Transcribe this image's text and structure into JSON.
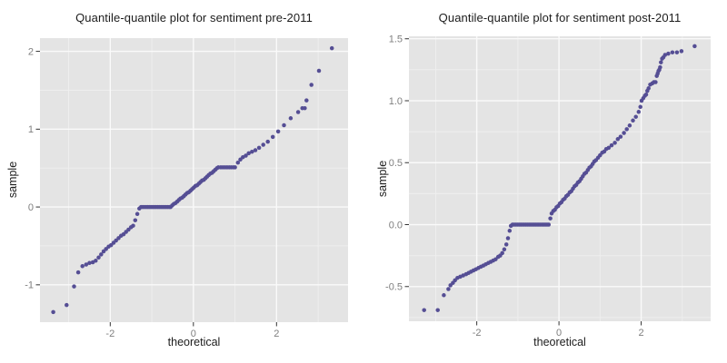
{
  "style": {
    "panel_background": "#e4e4e4",
    "grid_major_color": "#fafafa",
    "grid_minor_color": "#efefef",
    "point_color": "#554e94",
    "tick_mark_color": "#333333",
    "tick_label_color": "#7f7f7f",
    "text_color": "#1c1c1c"
  },
  "chart_data": [
    {
      "type": "scatter",
      "title": "Quantile-quantile plot for sentiment pre-2011",
      "xlabel": "theoretical",
      "ylabel": "sample",
      "xlim": [
        -3.69,
        3.72
      ],
      "ylim": [
        -1.48,
        2.17
      ],
      "grid": true,
      "legend": "none",
      "x_ticks": {
        "values": [
          -2,
          0,
          2
        ],
        "labels": [
          "-2",
          "0",
          "2"
        ],
        "minor": [
          -3,
          -1,
          1,
          3
        ]
      },
      "y_ticks": {
        "values": [
          -1,
          0,
          1,
          2
        ],
        "labels": [
          "-1",
          "0",
          "1",
          "2"
        ],
        "minor": [
          -0.5,
          0.5,
          1.5
        ]
      },
      "points": [
        [
          -3.37,
          -1.35
        ],
        [
          -3.05,
          -1.26
        ],
        [
          -2.87,
          -1.02
        ],
        [
          -2.77,
          -0.84
        ],
        [
          -2.67,
          -0.76
        ],
        [
          -2.58,
          -0.74
        ],
        [
          -2.5,
          -0.72
        ],
        [
          -2.42,
          -0.71
        ],
        [
          -2.35,
          -0.69
        ],
        [
          -2.28,
          -0.65
        ],
        [
          -2.22,
          -0.61
        ],
        [
          -2.16,
          -0.57
        ],
        [
          -2.1,
          -0.54
        ],
        [
          -2.04,
          -0.51
        ],
        [
          -1.98,
          -0.49
        ],
        [
          -1.92,
          -0.46
        ],
        [
          -1.86,
          -0.43
        ],
        [
          -1.8,
          -0.4
        ],
        [
          -1.74,
          -0.37
        ],
        [
          -1.68,
          -0.35
        ],
        [
          -1.62,
          -0.32
        ],
        [
          -1.56,
          -0.29
        ],
        [
          -1.5,
          -0.26
        ],
        [
          -1.45,
          -0.24
        ],
        [
          -1.4,
          -0.17
        ],
        [
          -1.35,
          -0.09
        ],
        [
          -1.3,
          -0.02
        ],
        [
          -1.26,
          0
        ],
        [
          -1.22,
          0
        ],
        [
          -1.18,
          0
        ],
        [
          -1.14,
          0
        ],
        [
          -1.1,
          0
        ],
        [
          -1.06,
          0
        ],
        [
          -1.02,
          0
        ],
        [
          -0.98,
          0
        ],
        [
          -0.94,
          0
        ],
        [
          -0.9,
          0
        ],
        [
          -0.86,
          0
        ],
        [
          -0.82,
          0
        ],
        [
          -0.78,
          0
        ],
        [
          -0.74,
          0
        ],
        [
          -0.7,
          0
        ],
        [
          -0.66,
          0
        ],
        [
          -0.62,
          0
        ],
        [
          -0.58,
          0
        ],
        [
          -0.55,
          0
        ],
        [
          -0.51,
          0.02
        ],
        [
          -0.47,
          0.04
        ],
        [
          -0.43,
          0.05
        ],
        [
          -0.39,
          0.07
        ],
        [
          -0.35,
          0.09
        ],
        [
          -0.31,
          0.11
        ],
        [
          -0.27,
          0.12
        ],
        [
          -0.23,
          0.14
        ],
        [
          -0.19,
          0.16
        ],
        [
          -0.15,
          0.18
        ],
        [
          -0.11,
          0.19
        ],
        [
          -0.07,
          0.21
        ],
        [
          -0.03,
          0.23
        ],
        [
          0.01,
          0.25
        ],
        [
          0.05,
          0.27
        ],
        [
          0.09,
          0.28
        ],
        [
          0.13,
          0.3
        ],
        [
          0.17,
          0.32
        ],
        [
          0.21,
          0.34
        ],
        [
          0.25,
          0.35
        ],
        [
          0.29,
          0.37
        ],
        [
          0.33,
          0.39
        ],
        [
          0.37,
          0.41
        ],
        [
          0.41,
          0.43
        ],
        [
          0.45,
          0.44
        ],
        [
          0.49,
          0.46
        ],
        [
          0.53,
          0.48
        ],
        [
          0.57,
          0.5
        ],
        [
          0.6,
          0.51
        ],
        [
          0.66,
          0.51
        ],
        [
          0.71,
          0.51
        ],
        [
          0.76,
          0.51
        ],
        [
          0.81,
          0.51
        ],
        [
          0.86,
          0.51
        ],
        [
          0.91,
          0.51
        ],
        [
          0.96,
          0.51
        ],
        [
          1,
          0.51
        ],
        [
          1.07,
          0.57
        ],
        [
          1.13,
          0.61
        ],
        [
          1.19,
          0.64
        ],
        [
          1.26,
          0.66
        ],
        [
          1.33,
          0.69
        ],
        [
          1.41,
          0.71
        ],
        [
          1.49,
          0.73
        ],
        [
          1.58,
          0.76
        ],
        [
          1.68,
          0.8
        ],
        [
          1.79,
          0.84
        ],
        [
          1.91,
          0.9
        ],
        [
          2.04,
          0.97
        ],
        [
          2.18,
          1.05
        ],
        [
          2.34,
          1.14
        ],
        [
          2.52,
          1.22
        ],
        [
          2.62,
          1.27
        ],
        [
          2.68,
          1.27
        ],
        [
          2.72,
          1.37
        ],
        [
          2.84,
          1.57
        ],
        [
          3.02,
          1.75
        ],
        [
          3.33,
          2.04
        ]
      ]
    },
    {
      "type": "scatter",
      "title": "Quantile-quantile plot for sentiment post-2011",
      "xlabel": "theoretical",
      "ylabel": "sample",
      "xlim": [
        -3.65,
        3.69
      ],
      "ylim": [
        -0.78,
        1.52
      ],
      "grid": true,
      "legend": "none",
      "x_ticks": {
        "values": [
          -2,
          0,
          2
        ],
        "labels": [
          "-2",
          "0",
          "2"
        ],
        "minor": [
          -3,
          -1,
          1,
          3
        ]
      },
      "y_ticks": {
        "values": [
          -0.5,
          0,
          0.5,
          1,
          1.5
        ],
        "labels": [
          "-0.5",
          "0.0",
          "0.5",
          "1.0",
          "1.5"
        ],
        "minor": [
          -0.75,
          -0.25,
          0.25,
          0.75,
          1.25
        ]
      },
      "points": [
        [
          -3.28,
          -0.69
        ],
        [
          -2.95,
          -0.69
        ],
        [
          -2.8,
          -0.57
        ],
        [
          -2.69,
          -0.52
        ],
        [
          -2.64,
          -0.49
        ],
        [
          -2.58,
          -0.47
        ],
        [
          -2.53,
          -0.45
        ],
        [
          -2.47,
          -0.43
        ],
        [
          -2.4,
          -0.42
        ],
        [
          -2.33,
          -0.41
        ],
        [
          -2.26,
          -0.4
        ],
        [
          -2.2,
          -0.39
        ],
        [
          -2.14,
          -0.38
        ],
        [
          -2.08,
          -0.37
        ],
        [
          -2.02,
          -0.36
        ],
        [
          -1.96,
          -0.35
        ],
        [
          -1.9,
          -0.34
        ],
        [
          -1.84,
          -0.33
        ],
        [
          -1.78,
          -0.32
        ],
        [
          -1.72,
          -0.31
        ],
        [
          -1.66,
          -0.3
        ],
        [
          -1.6,
          -0.29
        ],
        [
          -1.54,
          -0.28
        ],
        [
          -1.48,
          -0.26
        ],
        [
          -1.43,
          -0.25
        ],
        [
          -1.38,
          -0.23
        ],
        [
          -1.33,
          -0.2
        ],
        [
          -1.28,
          -0.16
        ],
        [
          -1.24,
          -0.11
        ],
        [
          -1.2,
          -0.05
        ],
        [
          -1.17,
          -0.01
        ],
        [
          -1.13,
          0
        ],
        [
          -1.09,
          0
        ],
        [
          -1.05,
          0
        ],
        [
          -1.01,
          0
        ],
        [
          -0.97,
          0
        ],
        [
          -0.93,
          0
        ],
        [
          -0.89,
          0
        ],
        [
          -0.85,
          0
        ],
        [
          -0.81,
          0
        ],
        [
          -0.77,
          0
        ],
        [
          -0.73,
          0
        ],
        [
          -0.69,
          0
        ],
        [
          -0.65,
          0
        ],
        [
          -0.61,
          0
        ],
        [
          -0.57,
          0
        ],
        [
          -0.53,
          0
        ],
        [
          -0.49,
          0
        ],
        [
          -0.45,
          0
        ],
        [
          -0.41,
          0
        ],
        [
          -0.37,
          0
        ],
        [
          -0.33,
          0
        ],
        [
          -0.29,
          0
        ],
        [
          -0.25,
          0
        ],
        [
          -0.21,
          0.05
        ],
        [
          -0.18,
          0.09
        ],
        [
          -0.14,
          0.11
        ],
        [
          -0.1,
          0.12
        ],
        [
          -0.06,
          0.14
        ],
        [
          -0.02,
          0.15
        ],
        [
          0.02,
          0.17
        ],
        [
          0.06,
          0.18
        ],
        [
          0.1,
          0.2
        ],
        [
          0.14,
          0.21
        ],
        [
          0.18,
          0.23
        ],
        [
          0.22,
          0.24
        ],
        [
          0.26,
          0.26
        ],
        [
          0.3,
          0.27
        ],
        [
          0.34,
          0.29
        ],
        [
          0.38,
          0.31
        ],
        [
          0.42,
          0.32
        ],
        [
          0.46,
          0.34
        ],
        [
          0.5,
          0.35
        ],
        [
          0.54,
          0.37
        ],
        [
          0.58,
          0.39
        ],
        [
          0.62,
          0.41
        ],
        [
          0.66,
          0.42
        ],
        [
          0.7,
          0.44
        ],
        [
          0.74,
          0.46
        ],
        [
          0.78,
          0.47
        ],
        [
          0.82,
          0.49
        ],
        [
          0.86,
          0.51
        ],
        [
          0.9,
          0.52
        ],
        [
          0.95,
          0.54
        ],
        [
          1,
          0.56
        ],
        [
          1.05,
          0.58
        ],
        [
          1.1,
          0.59
        ],
        [
          1.15,
          0.61
        ],
        [
          1.21,
          0.62
        ],
        [
          1.28,
          0.64
        ],
        [
          1.36,
          0.66
        ],
        [
          1.43,
          0.69
        ],
        [
          1.5,
          0.71
        ],
        [
          1.58,
          0.74
        ],
        [
          1.65,
          0.77
        ],
        [
          1.72,
          0.8
        ],
        [
          1.8,
          0.84
        ],
        [
          1.87,
          0.87
        ],
        [
          1.94,
          0.91
        ],
        [
          1.98,
          0.95
        ],
        [
          2.01,
          1
        ],
        [
          2.05,
          1.02
        ],
        [
          2.09,
          1.04
        ],
        [
          2.12,
          1.05
        ],
        [
          2.15,
          1.08
        ],
        [
          2.18,
          1.1
        ],
        [
          2.22,
          1.13
        ],
        [
          2.27,
          1.14
        ],
        [
          2.31,
          1.15
        ],
        [
          2.35,
          1.15
        ],
        [
          2.38,
          1.2
        ],
        [
          2.4,
          1.22
        ],
        [
          2.42,
          1.24
        ],
        [
          2.44,
          1.25
        ],
        [
          2.46,
          1.27
        ],
        [
          2.48,
          1.31
        ],
        [
          2.51,
          1.34
        ],
        [
          2.54,
          1.35
        ],
        [
          2.58,
          1.37
        ],
        [
          2.66,
          1.38
        ],
        [
          2.76,
          1.39
        ],
        [
          2.87,
          1.39
        ],
        [
          2.98,
          1.4
        ],
        [
          3.3,
          1.44
        ]
      ]
    }
  ]
}
